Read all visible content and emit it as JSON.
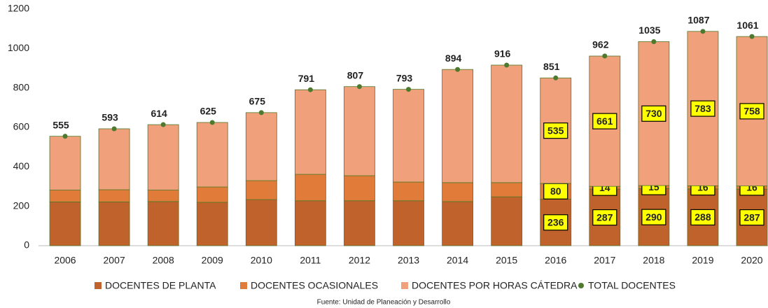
{
  "chart_data": {
    "type": "stacked_bar",
    "source": "Fuente: Unidad de Planeación y Desarrollo",
    "categories": [
      "2006",
      "2007",
      "2008",
      "2009",
      "2010",
      "2011",
      "2012",
      "2013",
      "2014",
      "2015",
      "2016",
      "2017",
      "2018",
      "2019",
      "2020"
    ],
    "ylim": [
      0,
      1200
    ],
    "yticks": [
      0,
      200,
      400,
      600,
      800,
      1000,
      1200
    ],
    "bar_edge_color": "#4f7a28",
    "series": [
      {
        "name": "DOCENTES DE PLANTA",
        "color": "#c0622b",
        "values": [
          222,
          222,
          224,
          220,
          234,
          228,
          228,
          228,
          224,
          248,
          236,
          287,
          290,
          288,
          287
        ],
        "value_labels": [
          null,
          null,
          null,
          null,
          null,
          null,
          null,
          null,
          null,
          null,
          "236",
          "287",
          "290",
          "288",
          "287"
        ]
      },
      {
        "name": "DOCENTES OCASIONALES",
        "color": "#e07b39",
        "values": [
          60,
          62,
          58,
          78,
          96,
          134,
          127,
          95,
          96,
          72,
          80,
          14,
          15,
          16,
          16
        ],
        "value_labels": [
          null,
          null,
          null,
          null,
          null,
          null,
          null,
          null,
          null,
          null,
          "80",
          "14",
          "15",
          "16",
          "16"
        ]
      },
      {
        "name": "DOCENTES POR HORAS CÁTEDRA",
        "color": "#f0a07a",
        "values": [
          273,
          309,
          332,
          327,
          345,
          429,
          452,
          470,
          574,
          596,
          535,
          661,
          730,
          783,
          758
        ],
        "value_labels": [
          null,
          null,
          null,
          null,
          null,
          null,
          null,
          null,
          null,
          null,
          "535",
          "661",
          "730",
          "783",
          "758"
        ]
      },
      {
        "name": "TOTAL DOCENTES",
        "color": "#4e7a2f",
        "kind": "marker",
        "values": [
          555,
          593,
          614,
          625,
          675,
          791,
          807,
          793,
          894,
          916,
          851,
          962,
          1035,
          1087,
          1061
        ]
      }
    ]
  }
}
